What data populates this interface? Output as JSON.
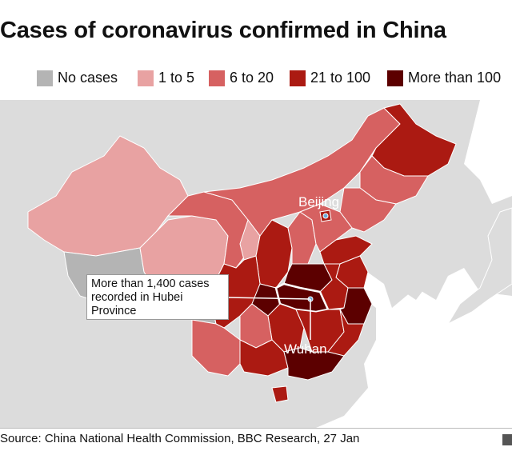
{
  "title": "Cases of coronavirus confirmed in China",
  "legend": [
    {
      "label": "No cases",
      "color": "#b4b4b4"
    },
    {
      "label": "1 to 5",
      "color": "#e8a2a2"
    },
    {
      "label": "6 to 20",
      "color": "#d66161"
    },
    {
      "label": "21 to 100",
      "color": "#ab1a12"
    },
    {
      "label": "More than 100",
      "color": "#5c0000"
    }
  ],
  "map": {
    "city_beijing": "Beijing",
    "city_wuhan": "Wuhan",
    "callout_lines": [
      "More than 1,400 cases",
      "recorded in Hubei",
      "Province"
    ],
    "land_color": "#dcdcdc",
    "sea_color": "#ffffff",
    "highlight_color": "#ffffff"
  },
  "source": "Source: China National Health Commission, BBC Research, 27 Jan"
}
